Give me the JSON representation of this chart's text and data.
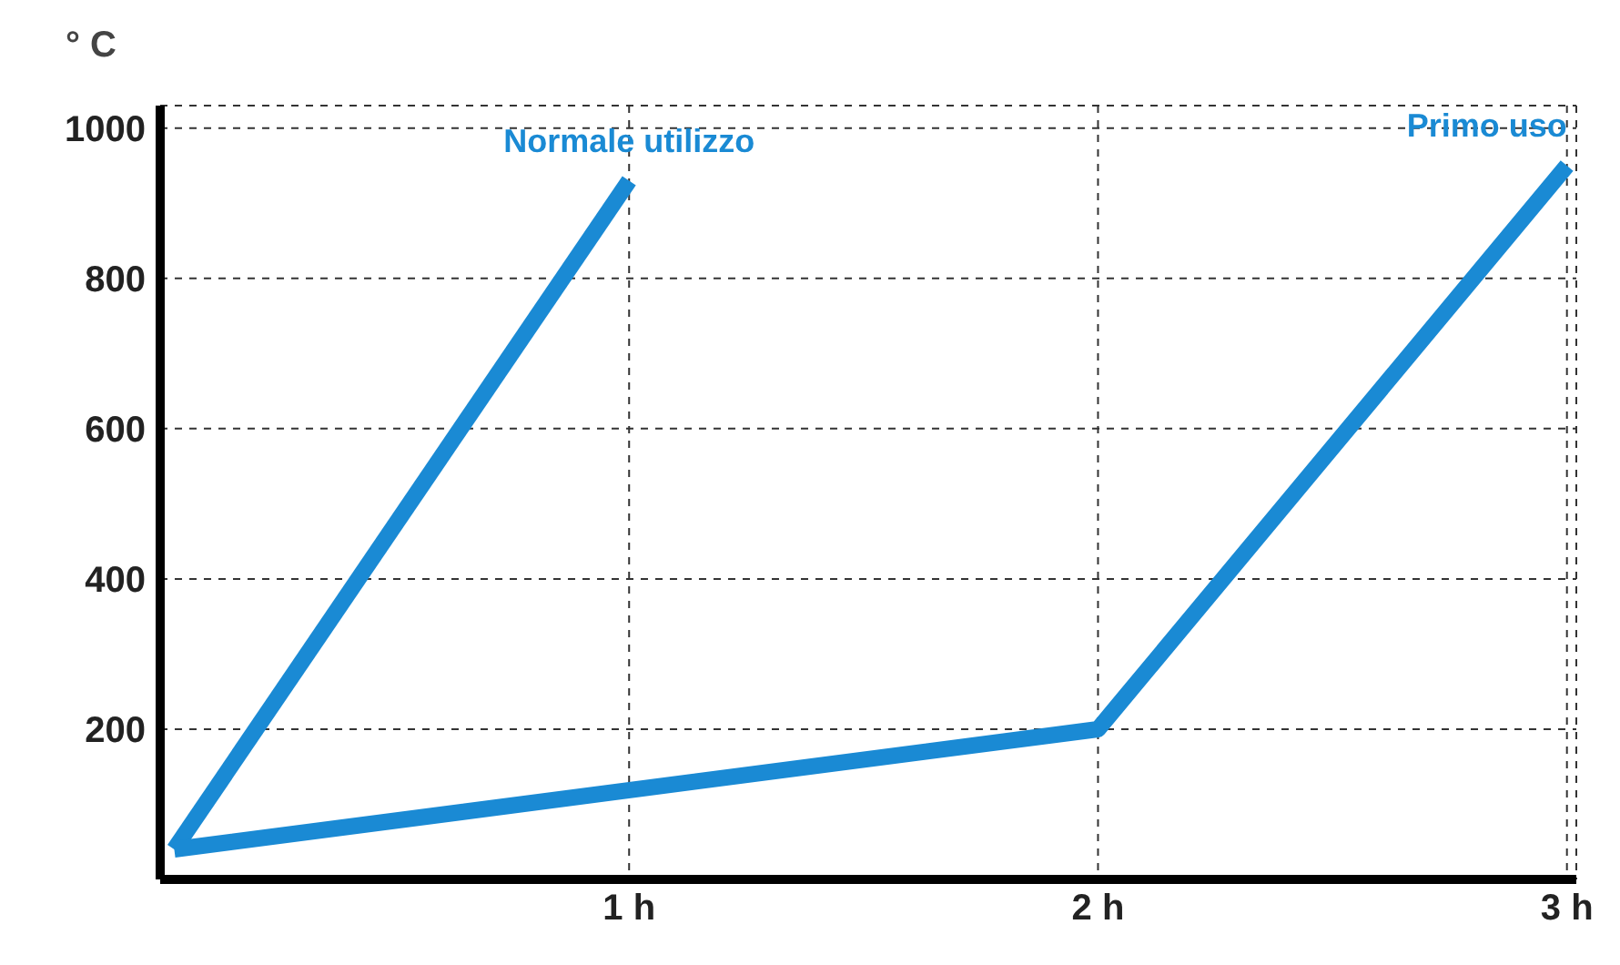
{
  "chart_data": {
    "type": "line",
    "ylabel": "° C",
    "xlim": [
      0,
      3.02
    ],
    "xticks": [
      {
        "value": 1,
        "label": "1 h"
      },
      {
        "value": 2,
        "label": "2 h"
      },
      {
        "value": 3,
        "label": "3 h"
      }
    ],
    "ylim": [
      0,
      1030
    ],
    "yticks": [
      200,
      400,
      600,
      800,
      1000
    ],
    "grid": true,
    "marker": "none",
    "line_style": "solid",
    "series": [
      {
        "name": "Normale utilizzo",
        "color": "#1a8ad4",
        "x": [
          0.03,
          1.0
        ],
        "values": [
          40,
          930
        ]
      },
      {
        "name": "Primo uso",
        "color": "#1a8ad4",
        "x": [
          0.03,
          2.0,
          3.0
        ],
        "values": [
          40,
          200,
          950
        ]
      }
    ]
  }
}
